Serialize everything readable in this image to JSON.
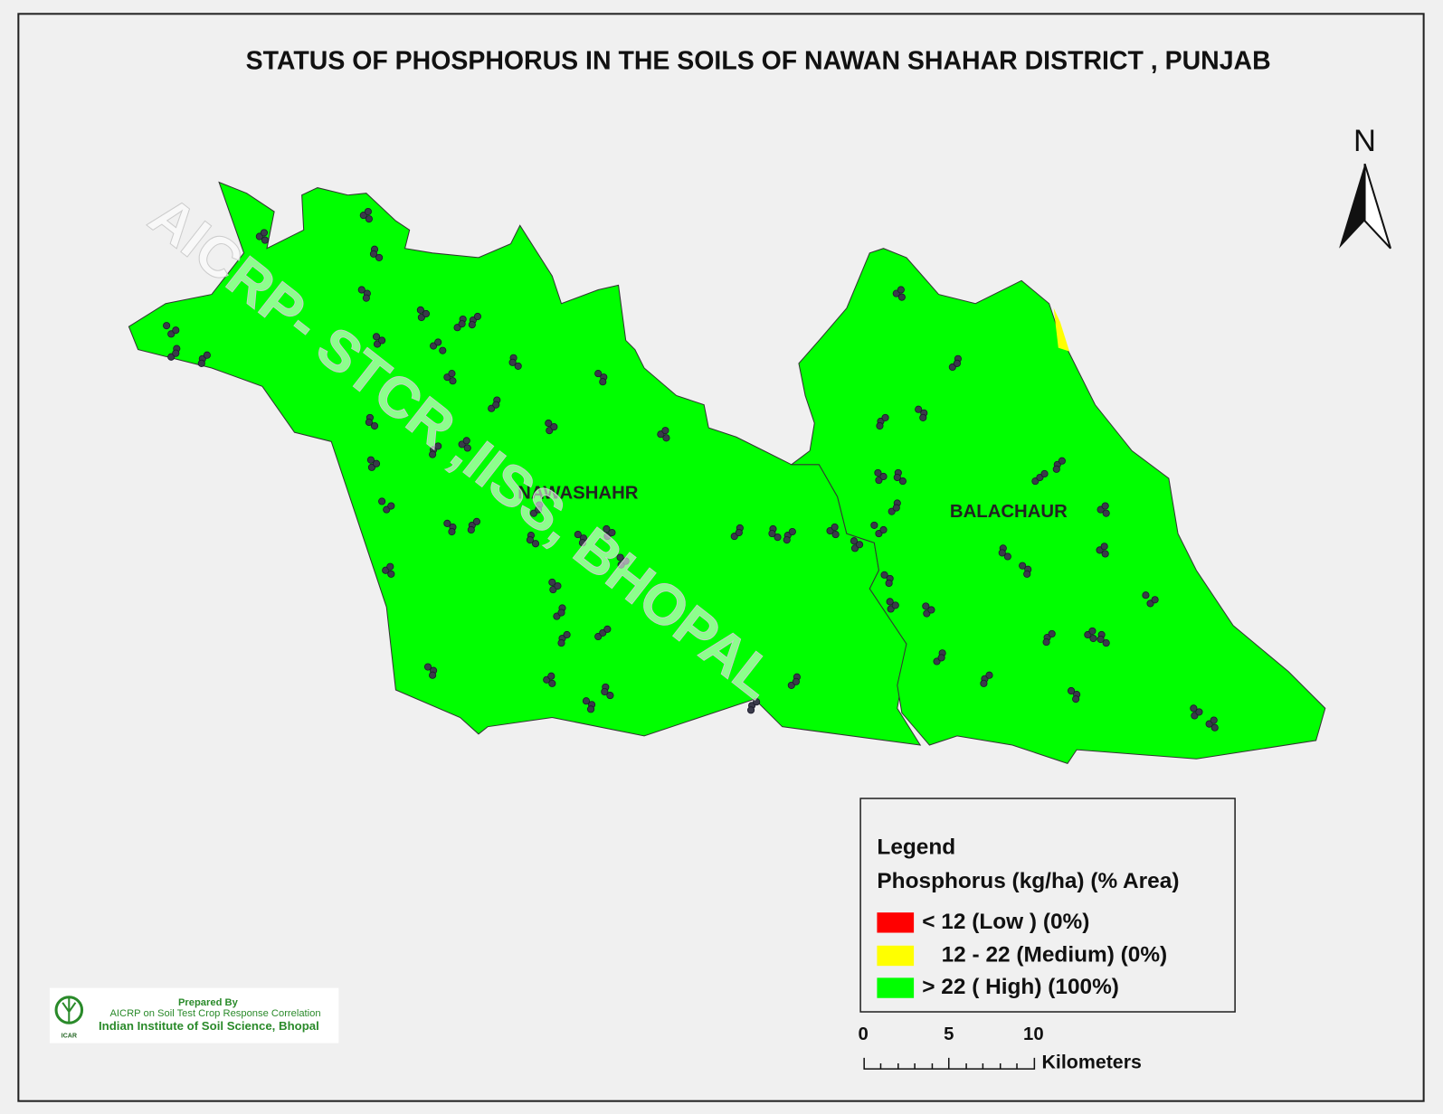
{
  "title": "STATUS OF PHOSPHORUS  IN THE SOILS OF NAWAN SHAHAR DISTRICT , PUNJAB",
  "north_arrow": "N",
  "watermark": "AICRP- STCR ,IISS, BHOPAL",
  "regions": [
    {
      "label": "NAWASHAHR",
      "color": "#00ff00"
    },
    {
      "label": "BALACHAUR",
      "color": "#00ff00"
    }
  ],
  "legend": {
    "title": "Legend",
    "subtitle": "Phosphorus (kg/ha) (% Area)",
    "items": [
      {
        "label": "< 12 (Low ) (0%)",
        "color": "#ff0000"
      },
      {
        "label": "12 - 22 (Medium) (0%)",
        "color": "#ffff00"
      },
      {
        "label": "> 22  ( High) (100%)",
        "color": "#00ff00"
      }
    ]
  },
  "scale_bar": {
    "labels": [
      "0",
      "5",
      "10"
    ],
    "unit": "Kilometers"
  },
  "credit": {
    "line1": "Prepared By",
    "line2": "AICRP on Soil Test Crop Response Correlation",
    "line3": "Indian Institute of Soil Science, Bhopal",
    "logo_text": "ICAR"
  }
}
